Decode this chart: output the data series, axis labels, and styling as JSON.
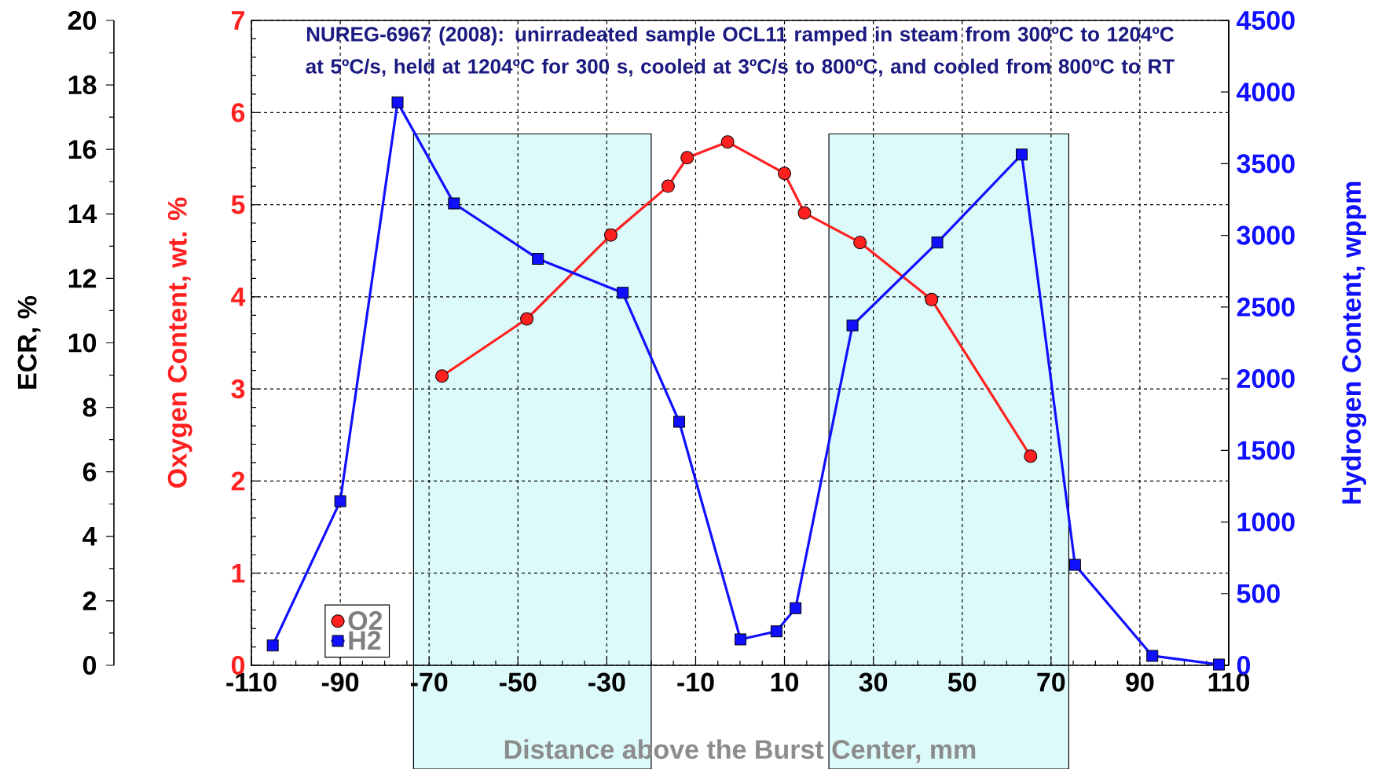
{
  "chart_data": {
    "type": "line",
    "title": "NUREG-6967 (2008): unirradeated sample OCL11 ramped in steam from 300ºC to 1204ºC at 5ºC/s, held at 1204ºC for 300 s, cooled at 3ºC/s to 800ºC, and cooled from 800ºC to RT",
    "xlabel": "Distance above the Burst Center, mm",
    "ylabel": "Oxygen Content, wt. %",
    "y2label": "Hydrogen Content, wppm",
    "y3label": "ECR, %",
    "xlim": [
      -110,
      110
    ],
    "xticks": [
      -110,
      -90,
      -70,
      -50,
      -30,
      -10,
      10,
      30,
      50,
      70,
      90,
      110
    ],
    "ylim": [
      0,
      7
    ],
    "yticks": [
      0,
      1,
      2,
      3,
      4,
      5,
      6,
      7
    ],
    "y2lim": [
      0,
      4500
    ],
    "y2ticks": [
      0,
      500,
      1000,
      1500,
      2000,
      2500,
      3000,
      3500,
      4000,
      4500
    ],
    "y3lim": [
      0,
      20
    ],
    "y3ticks": [
      0,
      2,
      4,
      6,
      8,
      10,
      12,
      14,
      16,
      18,
      20
    ],
    "grid": true,
    "legend": "bottom left",
    "bands": [
      {
        "axis": "x",
        "from": -73.5,
        "to": -20,
        "color": "#dcfafa"
      },
      {
        "axis": "x",
        "from": 20,
        "to": 74,
        "color": "#dcfafa"
      }
    ],
    "series": [
      {
        "name": "O2",
        "color": "#ff2020",
        "marker": "circle",
        "x": [
          -67.1,
          -48.0,
          -29.1,
          -16.2,
          -11.9,
          -2.8,
          10.0,
          14.5,
          27.0,
          43.1,
          65.4
        ],
        "values": [
          3.14,
          3.76,
          4.67,
          5.2,
          5.51,
          5.68,
          5.34,
          4.91,
          4.59,
          3.97,
          2.27
        ]
      },
      {
        "name": "H2",
        "color": "#1010ff",
        "marker": "square",
        "axis": "y2",
        "x": [
          -105.2,
          -90.0,
          -77.1,
          -64.4,
          -45.5,
          -26.4,
          -13.7,
          0.1,
          8.2,
          12.5,
          25.3,
          44.4,
          63.4,
          75.4,
          92.8,
          107.8
        ],
        "values": [
          139,
          1145,
          3928,
          3223,
          2837,
          2599,
          1699,
          181,
          237,
          399,
          2372,
          2950,
          3564,
          701,
          66,
          5
        ]
      }
    ]
  }
}
